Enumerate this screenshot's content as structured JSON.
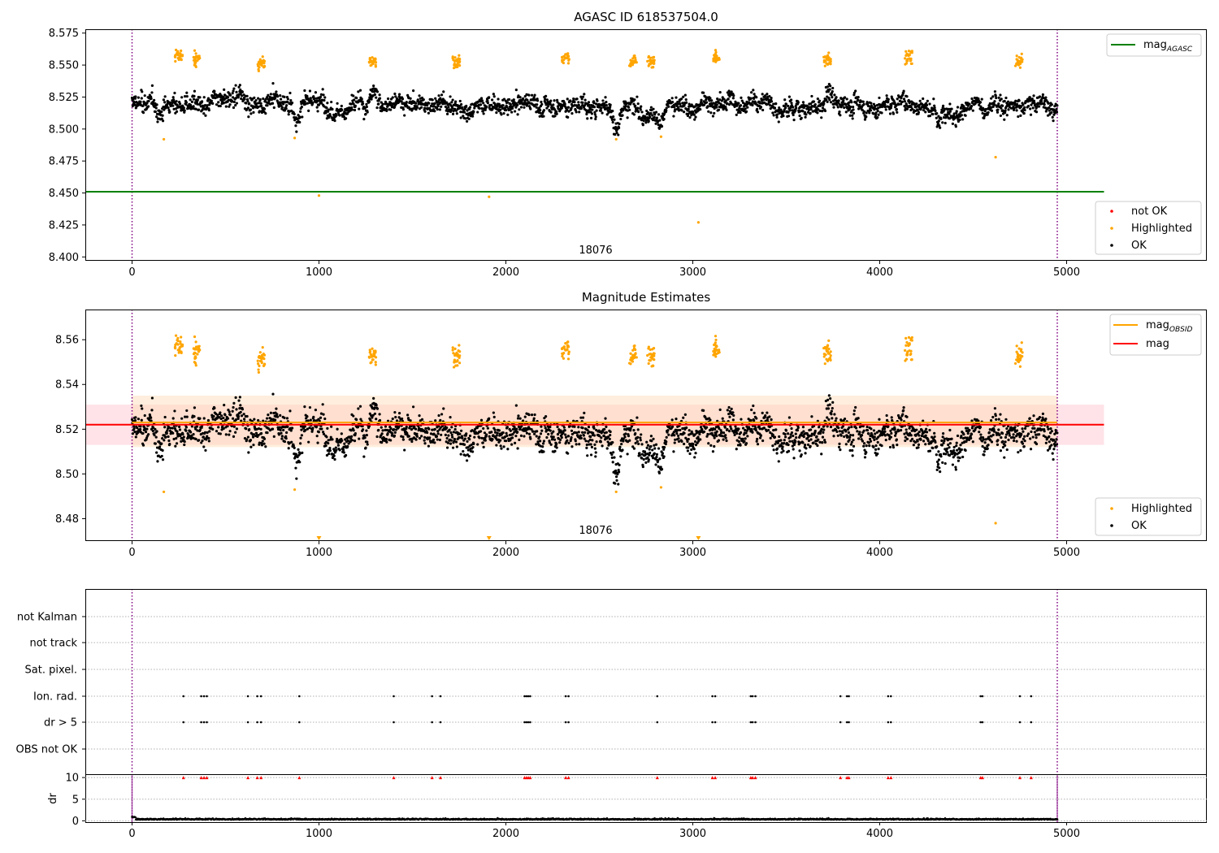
{
  "chart_data": [
    {
      "type": "scatter",
      "title": "AGASC ID 618537504.0",
      "xlim": [
        -250,
        5750
      ],
      "ylim": [
        8.397,
        8.578
      ],
      "xticks": [
        "0",
        "1000",
        "2000",
        "3000",
        "4000",
        "5000"
      ],
      "yticks": [
        "8.400",
        "8.425",
        "8.450",
        "8.475",
        "8.500",
        "8.525",
        "8.550",
        "8.575"
      ],
      "obs_boundaries": [
        0,
        4950
      ],
      "obsid_label": "18076",
      "obsid_label_x": 2470,
      "lines": [
        {
          "name": "mag_AGASC",
          "y": 8.451,
          "x_range": [
            -250,
            5200
          ],
          "color": "#008000"
        }
      ],
      "legend_lines": [
        {
          "name": "mag",
          "sub": "AGASC",
          "color": "#008000"
        }
      ],
      "legend_points": [
        {
          "name": "not OK",
          "color": "#ff0000"
        },
        {
          "name": "Highlighted",
          "color": "#ffa500"
        },
        {
          "name": "OK",
          "color": "#000000"
        }
      ],
      "series": [
        {
          "name": "OK",
          "color": "#000000",
          "x_range": [
            0,
            4950
          ],
          "baseline": 8.52,
          "spread": 0.008
        },
        {
          "name": "Highlighted",
          "color": "#ffa500",
          "clusters": [
            {
              "x": 250,
              "y": 8.557
            },
            {
              "x": 345,
              "y": 8.555
            },
            {
              "x": 690,
              "y": 8.551
            },
            {
              "x": 1285,
              "y": 8.553
            },
            {
              "x": 1735,
              "y": 8.553
            },
            {
              "x": 2320,
              "y": 8.556
            },
            {
              "x": 2680,
              "y": 8.553
            },
            {
              "x": 2775,
              "y": 8.553
            },
            {
              "x": 3125,
              "y": 8.556
            },
            {
              "x": 3720,
              "y": 8.554
            },
            {
              "x": 4155,
              "y": 8.556
            },
            {
              "x": 4745,
              "y": 8.553
            }
          ],
          "outliers": [
            {
              "x": 1000,
              "y": 8.448
            },
            {
              "x": 1910,
              "y": 8.447
            },
            {
              "x": 3030,
              "y": 8.427
            },
            {
              "x": 4620,
              "y": 8.478
            },
            {
              "x": 170,
              "y": 8.492
            },
            {
              "x": 870,
              "y": 8.493
            },
            {
              "x": 2590,
              "y": 8.492
            },
            {
              "x": 2830,
              "y": 8.494
            }
          ]
        }
      ]
    },
    {
      "type": "scatter",
      "title": "Magnitude Estimates",
      "xlim": [
        -250,
        5750
      ],
      "ylim": [
        8.47,
        8.5735
      ],
      "xticks": [
        "0",
        "1000",
        "2000",
        "3000",
        "4000",
        "5000"
      ],
      "yticks": [
        "8.48",
        "8.50",
        "8.52",
        "8.54",
        "8.56"
      ],
      "obs_boundaries": [
        0,
        4950
      ],
      "obsid_label": "18076",
      "obsid_label_x": 2470,
      "lines": [
        {
          "name": "mag_OBSID",
          "y": 8.523,
          "x_range": [
            0,
            4950
          ],
          "color": "#ffa500"
        },
        {
          "name": "mag",
          "y": 8.522,
          "x_range": [
            -250,
            5200
          ],
          "color": "#ff0000"
        }
      ],
      "bands": [
        {
          "y0": 8.513,
          "y1": 8.531,
          "x_range": [
            -250,
            5200
          ],
          "color": "#ffc0cb"
        },
        {
          "y0": 8.512,
          "y1": 8.535,
          "x_range": [
            0,
            4950
          ],
          "color": "#ffdab3"
        }
      ],
      "legend_lines": [
        {
          "name": "mag",
          "sub": "OBSID",
          "color": "#ffa500"
        },
        {
          "name": "mag",
          "sub": "",
          "color": "#ff0000"
        }
      ],
      "legend_points": [
        {
          "name": "Highlighted",
          "color": "#ffa500"
        },
        {
          "name": "OK",
          "color": "#000000"
        }
      ],
      "offscale_markers": [
        1000,
        1910,
        3030
      ]
    },
    {
      "type": "scatter",
      "title": "",
      "xlim": [
        -250,
        5750
      ],
      "categories": [
        "not Kalman",
        "not track",
        "Sat. pixel.",
        "Ion. rad.",
        "dr > 5",
        "OBS not OK"
      ],
      "flag_x": [
        275,
        370,
        385,
        400,
        620,
        670,
        690,
        895,
        1400,
        1605,
        1650,
        2100,
        2110,
        2120,
        2130,
        2320,
        2335,
        2810,
        3105,
        3120,
        3310,
        3320,
        3335,
        3790,
        3825,
        3835,
        4045,
        4060,
        4540,
        4550,
        4750,
        4810
      ],
      "flag_rows": [
        "Ion. rad.",
        "dr > 5"
      ],
      "obs_boundaries": [
        0,
        4950
      ]
    },
    {
      "type": "scatter",
      "title": "",
      "ylabel": "dr",
      "xlim": [
        -250,
        5750
      ],
      "ylim": [
        -0.3,
        10.4
      ],
      "xticks": [
        "0",
        "1000",
        "2000",
        "3000",
        "4000",
        "5000"
      ],
      "yticks": [
        "0",
        "5",
        "10"
      ],
      "obs_boundaries": [
        0,
        4950
      ],
      "clipped_marker_y": 10,
      "series": [
        {
          "name": "dr",
          "color": "#000000",
          "x_range": [
            0,
            4950
          ],
          "baseline": 0.3
        }
      ]
    }
  ]
}
